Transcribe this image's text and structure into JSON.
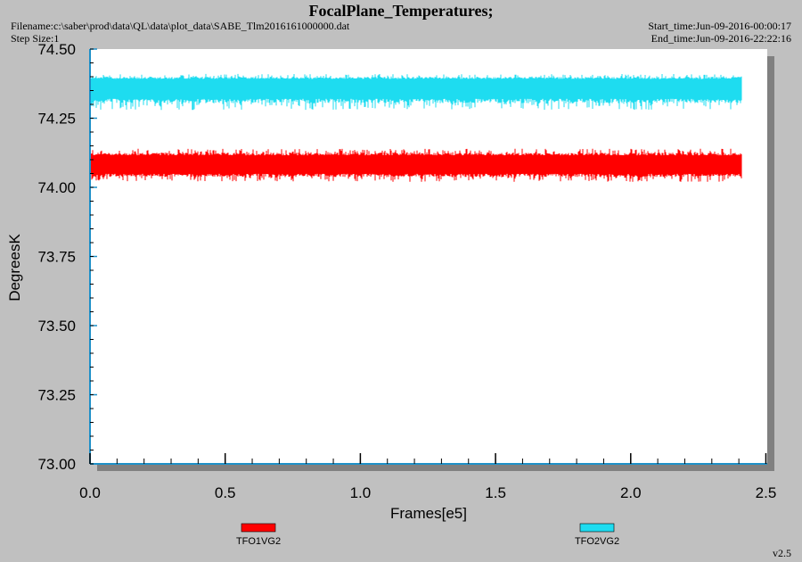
{
  "header": {
    "title": "FocalPlane_Temperatures;",
    "filename": "Filename:c:\\saber\\prod\\data\\QL\\data\\plot_data\\SABE_Tlm2016161000000.dat",
    "step_size": "Step Size:1",
    "start_time": "Start_time:Jun-09-2016-00:00:17",
    "end_time": "End_time:Jun-09-2016-22:22:16"
  },
  "version": "v2.5",
  "colors": {
    "background": "#c0c0c0",
    "plot_area": "#ffffff",
    "axis": "#1e90c8",
    "series1": "#ff0000",
    "series2": "#1edcf0"
  },
  "chart_data": {
    "type": "line",
    "xlabel": "Frames[e5]",
    "ylabel": "DegreesK",
    "xlim": [
      0,
      2.5
    ],
    "ylim": [
      73.0,
      74.5
    ],
    "x_ticks": [
      "0.0",
      "0.5",
      "1.0",
      "1.5",
      "2.0",
      "2.5"
    ],
    "y_ticks": [
      "73.00",
      "73.25",
      "73.50",
      "73.75",
      "74.00",
      "74.25",
      "74.50"
    ],
    "grid": false,
    "legend_position": "bottom",
    "series": [
      {
        "name": "TFO1VG2",
        "color": "#ff0000",
        "x_start": 0.0,
        "x_end": 2.41,
        "mean": 74.085,
        "min": 74.02,
        "max": 74.14
      },
      {
        "name": "TFO2VG2",
        "color": "#1edcf0",
        "x_start": 0.0,
        "x_end": 2.41,
        "mean": 74.37,
        "min": 74.28,
        "max": 74.41
      }
    ]
  }
}
